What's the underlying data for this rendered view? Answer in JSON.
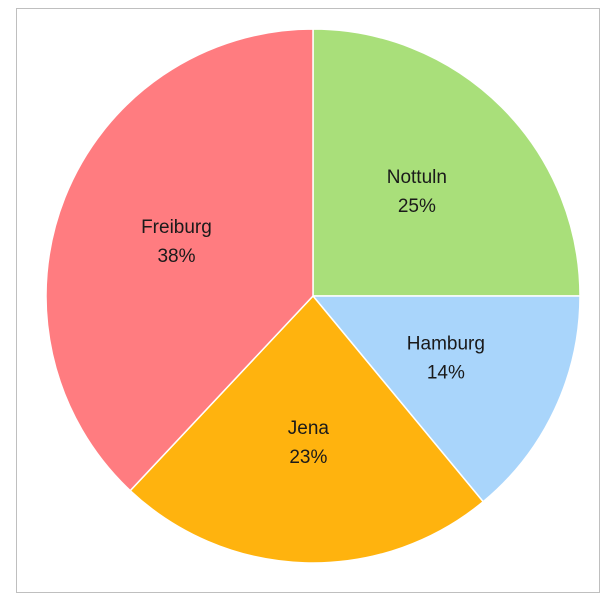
{
  "chart_data": {
    "type": "pie",
    "categories": [
      "Nottuln",
      "Hamburg",
      "Jena",
      "Freiburg"
    ],
    "values": [
      25,
      14,
      23,
      38
    ],
    "value_labels": [
      "25%",
      "14%",
      "23%",
      "38%"
    ],
    "colors": [
      "#a9df7a",
      "#a9d5fb",
      "#ffb30e",
      "#ff7c80"
    ]
  }
}
